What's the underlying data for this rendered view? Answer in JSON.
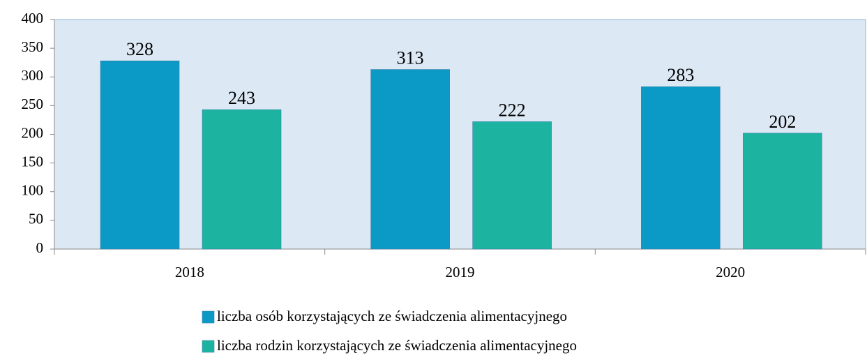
{
  "chart_data": {
    "type": "bar",
    "categories": [
      "2018",
      "2019",
      "2020"
    ],
    "series": [
      {
        "name": "liczba osób korzystających ze świadczenia alimentacyjnego",
        "color": "#0a9ac5",
        "values": [
          328,
          313,
          283
        ]
      },
      {
        "name": "liczba rodzin korzystających ze świadczenia alimentacyjnego",
        "color": "#1cb4a0",
        "values": [
          243,
          222,
          202
        ]
      }
    ],
    "ylim": [
      0,
      400
    ],
    "yticks": [
      0,
      50,
      100,
      150,
      200,
      250,
      300,
      350,
      400
    ],
    "grid": false,
    "legend": "bottom"
  }
}
